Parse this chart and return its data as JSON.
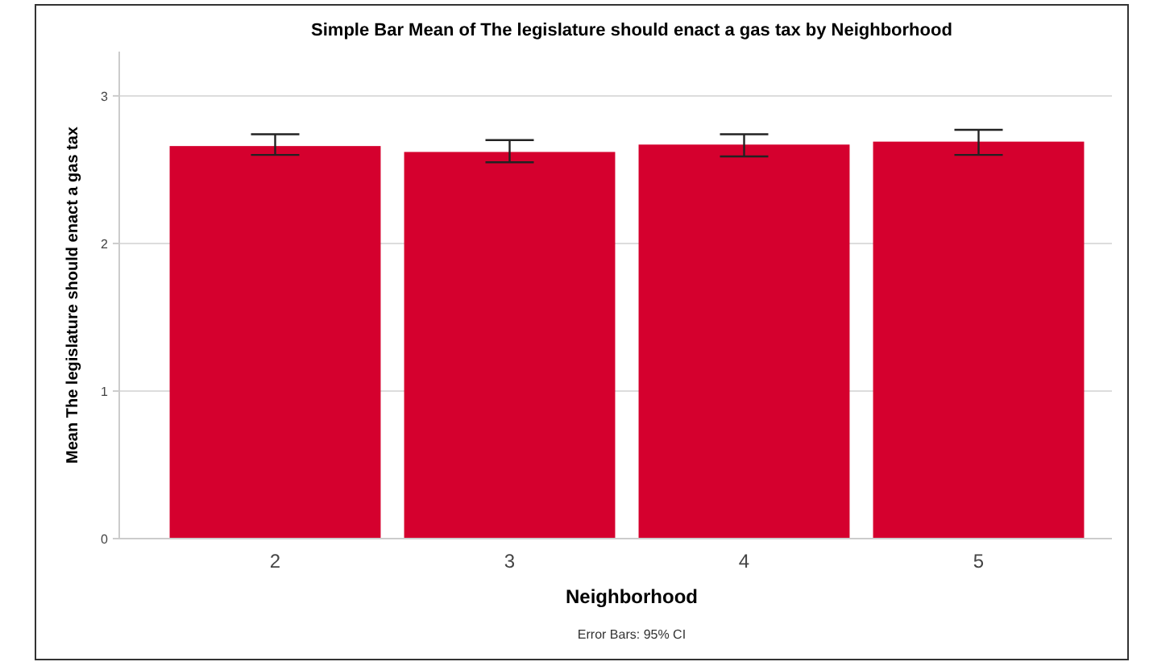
{
  "chart_data": {
    "type": "bar",
    "title": "Simple Bar Mean of The legislature should enact a gas tax by Neighborhood",
    "xlabel": "Neighborhood",
    "ylabel": "Mean The legislature should enact a gas tax",
    "annotations": [
      "Error Bars: 95% CI"
    ],
    "categories": [
      "2",
      "3",
      "4",
      "5"
    ],
    "values": [
      2.66,
      2.62,
      2.67,
      2.69
    ],
    "errors": [
      [
        2.6,
        2.74
      ],
      [
        2.55,
        2.7
      ],
      [
        2.59,
        2.74
      ],
      [
        2.6,
        2.77
      ]
    ],
    "color": "#d5002e",
    "ylim": [
      0,
      3.3
    ],
    "yticks": [
      0,
      1,
      2,
      3
    ],
    "grid": "y"
  }
}
